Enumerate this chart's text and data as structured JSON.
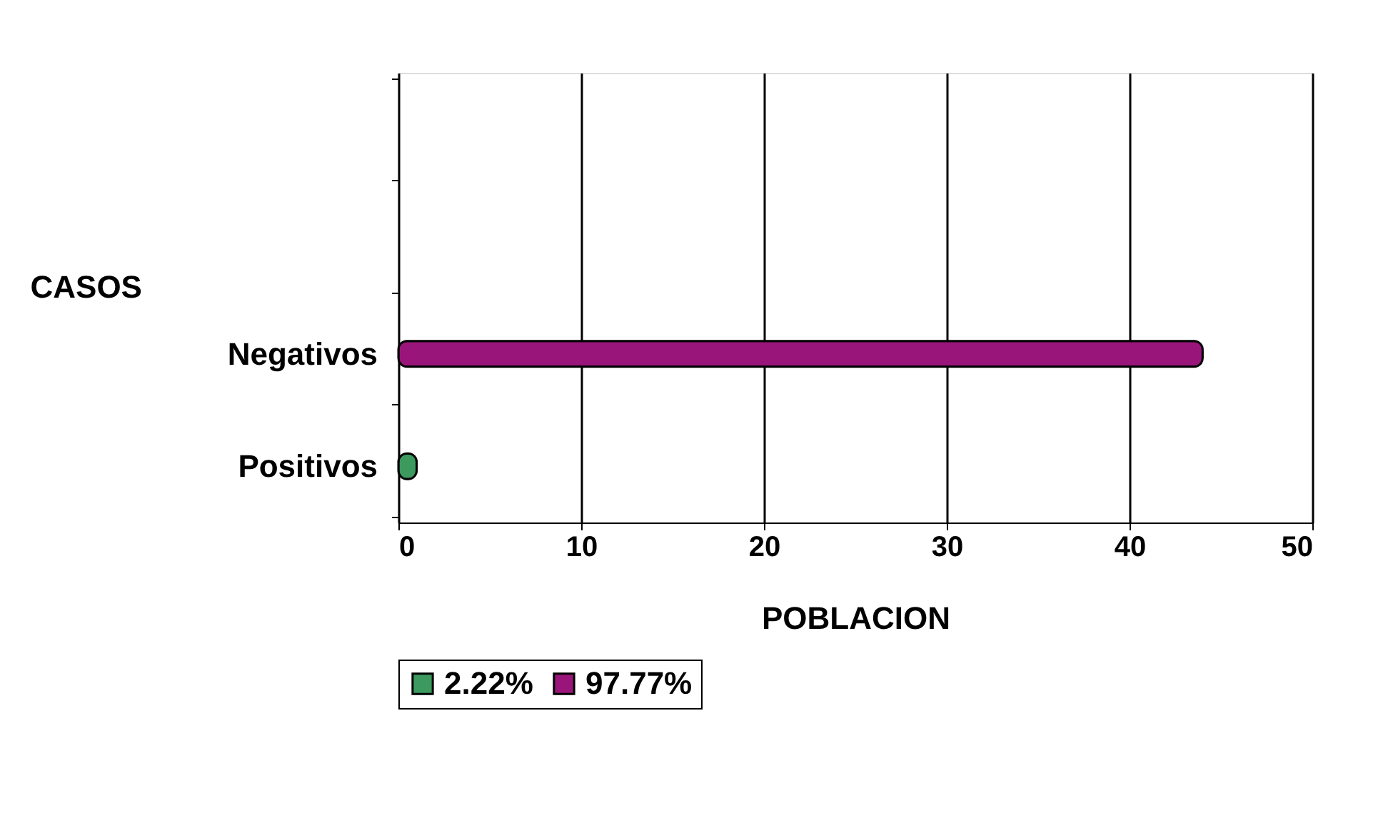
{
  "chart_data": {
    "type": "bar",
    "orientation": "horizontal",
    "xlabel": "POBLACION",
    "ylabel": "CASOS",
    "categories": [
      null,
      null,
      "Negativos",
      "Positivos"
    ],
    "series": [
      {
        "name": "2.22%",
        "color": "#3c9a5f",
        "values": [
          null,
          null,
          null,
          1
        ]
      },
      {
        "name": "97.77%",
        "color": "#99157a",
        "values": [
          null,
          null,
          44,
          null
        ]
      }
    ],
    "xlim": [
      0,
      50
    ],
    "xticks": [
      0,
      10,
      20,
      30,
      40,
      50
    ],
    "grid": "x",
    "legend": "bottom"
  }
}
